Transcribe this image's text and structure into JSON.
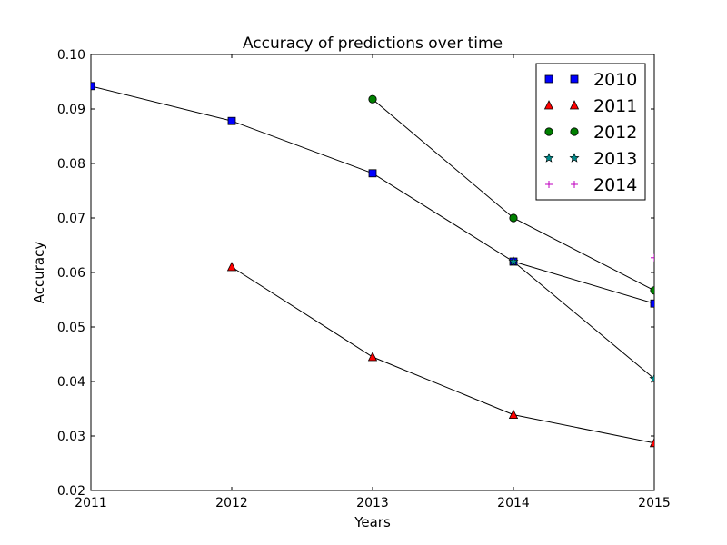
{
  "chart_data": {
    "type": "line",
    "title": "Accuracy of predictions over time",
    "xlabel": "Years",
    "ylabel": "Accuracy",
    "xlim": [
      2011,
      2015
    ],
    "ylim": [
      0.02,
      0.1
    ],
    "x_ticks": [
      "2011",
      "2012",
      "2013",
      "2014",
      "2015"
    ],
    "y_ticks": [
      "0.02",
      "0.03",
      "0.04",
      "0.05",
      "0.06",
      "0.07",
      "0.08",
      "0.09",
      "0.10"
    ],
    "grid": false,
    "legend_position": "top-right",
    "series": [
      {
        "name": "2010",
        "marker": "square",
        "color": "#0000ff",
        "points": [
          [
            2011,
            0.0942
          ],
          [
            2012,
            0.0878
          ],
          [
            2013,
            0.0782
          ],
          [
            2014,
            0.062
          ],
          [
            2015,
            0.0543
          ]
        ]
      },
      {
        "name": "2011",
        "marker": "triangle",
        "color": "#ff0000",
        "points": [
          [
            2012,
            0.061
          ],
          [
            2013,
            0.0445
          ],
          [
            2014,
            0.0339
          ],
          [
            2015,
            0.0287
          ]
        ]
      },
      {
        "name": "2012",
        "marker": "circle",
        "color": "#008000",
        "points": [
          [
            2013,
            0.0918
          ],
          [
            2014,
            0.07
          ],
          [
            2015,
            0.0567
          ]
        ]
      },
      {
        "name": "2013",
        "marker": "star",
        "color": "#008b8b",
        "points": [
          [
            2014,
            0.062
          ],
          [
            2015,
            0.0405
          ]
        ]
      },
      {
        "name": "2014",
        "marker": "plus",
        "color": "#bf00bf",
        "points": [
          [
            2015,
            0.0627
          ]
        ]
      }
    ]
  }
}
